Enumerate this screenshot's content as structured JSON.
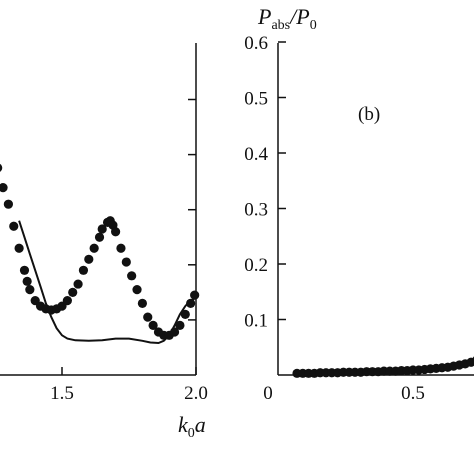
{
  "chart_data": [
    {
      "type": "scatter",
      "panel": "left",
      "title": "",
      "xlabel": "k0a",
      "xlim": [
        1.0,
        2.0
      ],
      "ylim": [
        0,
        0.6
      ],
      "x_ticks": [
        1.5,
        2.0
      ],
      "x_tick_labels": [
        "1.5",
        "2.0"
      ],
      "y_ticks": [
        0.1,
        0.2,
        0.3,
        0.4,
        0.5
      ],
      "series": [
        {
          "style": "dots",
          "x": [
            1.19,
            1.23,
            1.26,
            1.28,
            1.3,
            1.32,
            1.34,
            1.36,
            1.37,
            1.38,
            1.4,
            1.42,
            1.44,
            1.46,
            1.48,
            1.5,
            1.52,
            1.54,
            1.56,
            1.58,
            1.6,
            1.62,
            1.64,
            1.65,
            1.67,
            1.68,
            1.69,
            1.7,
            1.72,
            1.74,
            1.76,
            1.78,
            1.8,
            1.82,
            1.84,
            1.86,
            1.88,
            1.9,
            1.92,
            1.94,
            1.96,
            1.98,
            1.995
          ],
          "y": [
            0.29,
            0.37,
            0.376,
            0.34,
            0.31,
            0.27,
            0.23,
            0.19,
            0.17,
            0.155,
            0.135,
            0.125,
            0.12,
            0.118,
            0.12,
            0.125,
            0.135,
            0.15,
            0.165,
            0.19,
            0.21,
            0.23,
            0.25,
            0.265,
            0.277,
            0.28,
            0.272,
            0.26,
            0.23,
            0.205,
            0.18,
            0.155,
            0.13,
            0.105,
            0.09,
            0.078,
            0.072,
            0.072,
            0.078,
            0.09,
            0.11,
            0.13,
            0.145
          ]
        },
        {
          "style": "solid-line",
          "x": [
            1.34,
            1.36,
            1.38,
            1.4,
            1.42,
            1.44,
            1.46,
            1.48,
            1.5,
            1.52,
            1.55,
            1.6,
            1.65,
            1.7,
            1.75,
            1.8,
            1.83,
            1.86,
            1.88,
            1.9,
            1.92,
            1.94,
            1.96,
            1.98,
            2.0
          ],
          "y": [
            0.28,
            0.25,
            0.22,
            0.19,
            0.16,
            0.13,
            0.105,
            0.085,
            0.072,
            0.066,
            0.063,
            0.062,
            0.063,
            0.066,
            0.066,
            0.062,
            0.059,
            0.058,
            0.062,
            0.072,
            0.09,
            0.11,
            0.125,
            0.135,
            0.14
          ]
        }
      ]
    },
    {
      "type": "scatter",
      "panel": "right",
      "label": "(b)",
      "title": "",
      "ylabel": "Pabs/P0",
      "xlim": [
        0,
        0.74
      ],
      "ylim": [
        0,
        0.6
      ],
      "x_ticks": [
        0,
        0.5
      ],
      "x_tick_labels": [
        "0",
        "0.5"
      ],
      "y_ticks": [
        0.1,
        0.2,
        0.3,
        0.4,
        0.5,
        0.6
      ],
      "y_tick_labels": [
        "0.1",
        "0.2",
        "0.3",
        "0.4",
        "0.5",
        "0.6"
      ],
      "series": [
        {
          "style": "dots",
          "x": [
            0.1,
            0.12,
            0.14,
            0.16,
            0.18,
            0.2,
            0.22,
            0.24,
            0.26,
            0.28,
            0.3,
            0.32,
            0.34,
            0.36,
            0.38,
            0.4,
            0.42,
            0.44,
            0.46,
            0.48,
            0.5,
            0.52,
            0.54,
            0.56,
            0.58,
            0.6,
            0.62,
            0.64,
            0.66,
            0.68,
            0.7,
            0.72,
            0.735
          ],
          "y": [
            0.003,
            0.003,
            0.003,
            0.003,
            0.004,
            0.004,
            0.004,
            0.004,
            0.005,
            0.005,
            0.005,
            0.005,
            0.006,
            0.006,
            0.006,
            0.007,
            0.007,
            0.007,
            0.008,
            0.008,
            0.009,
            0.009,
            0.01,
            0.011,
            0.012,
            0.013,
            0.014,
            0.016,
            0.018,
            0.02,
            0.023,
            0.027,
            0.032
          ]
        }
      ]
    }
  ]
}
